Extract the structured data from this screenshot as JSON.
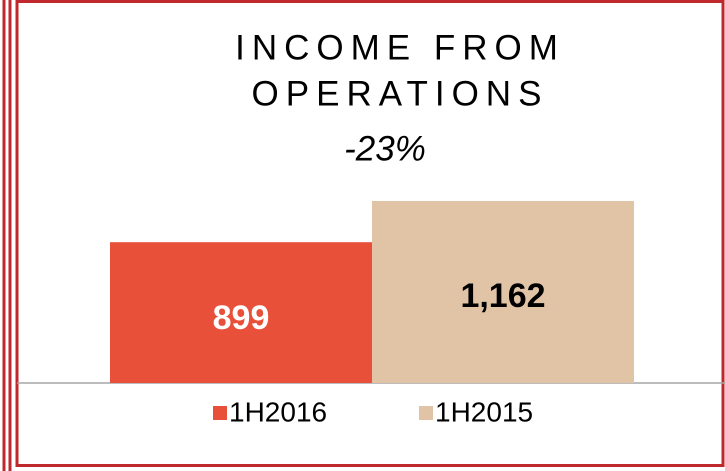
{
  "chart_data": {
    "type": "bar",
    "title": [
      "INCOME FROM",
      "OPERATIONS"
    ],
    "subtitle": "-23%",
    "series": [
      {
        "name": "1H2016",
        "color": "#e8503a",
        "label_color": "#ffffff",
        "values": [
          899
        ],
        "value_labels": [
          "899"
        ]
      },
      {
        "name": "1H2015",
        "color": "#e0c4a5",
        "label_color": "#000000",
        "values": [
          1162
        ],
        "value_labels": [
          "1,162"
        ]
      }
    ]
  }
}
